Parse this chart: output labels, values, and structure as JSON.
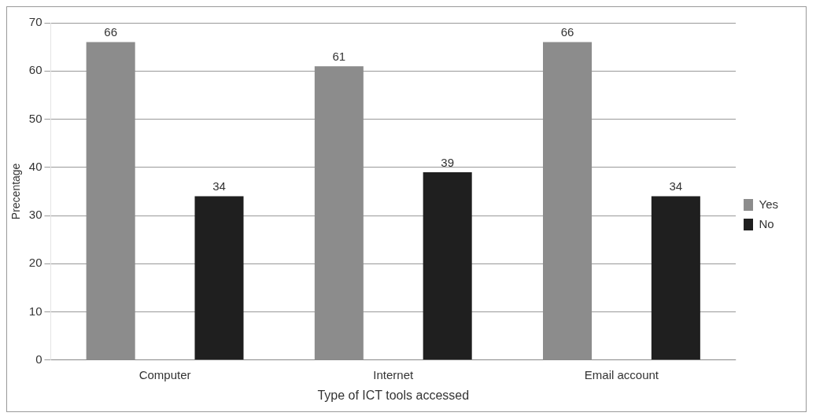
{
  "chart_data": {
    "type": "bar",
    "xlabel": "Type of ICT tools accessed",
    "ylabel": "Precentage",
    "categories": [
      "Computer",
      "Internet",
      "Email account"
    ],
    "series": [
      {
        "name": "Yes",
        "color": "#8c8c8c",
        "values": [
          66,
          61,
          66
        ]
      },
      {
        "name": "No",
        "color": "#1f1f1f",
        "values": [
          34,
          39,
          34
        ]
      }
    ],
    "ylim": [
      0,
      70
    ],
    "yticks": [
      0,
      10,
      20,
      30,
      40,
      50,
      60,
      70
    ],
    "grid": "y",
    "legend": "right",
    "data_labels": true
  }
}
